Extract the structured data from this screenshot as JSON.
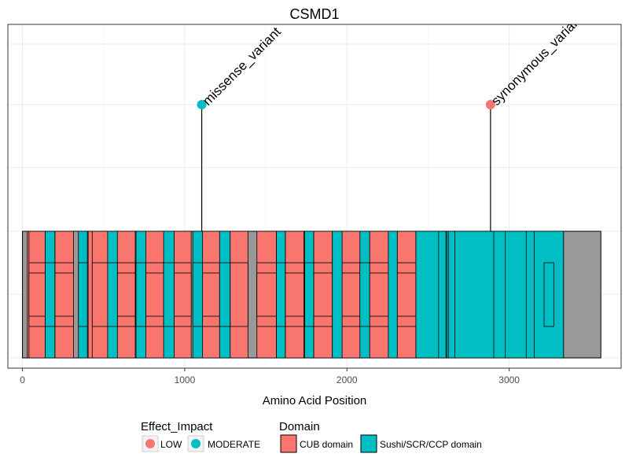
{
  "chart_data": {
    "type": "lollipop",
    "title": "CSMD1",
    "xlabel": "Amino Acid Position",
    "ylabel": "",
    "xlim": [
      -90,
      3690
    ],
    "x_ticks": [
      0,
      1000,
      2000,
      3000
    ],
    "x_tick_labels": [
      "0",
      "1000",
      "2000",
      "3000"
    ],
    "grid": true,
    "legend_position": "bottom",
    "protein": {
      "start": 0,
      "end": 3565,
      "color": "#999999"
    },
    "variants": [
      {
        "label": "missense_variant",
        "position": 1105,
        "effect_impact": "MODERATE"
      },
      {
        "label": "synonymous_variant",
        "position": 2885,
        "effect_impact": "LOW"
      }
    ],
    "domains": [
      {
        "name": "CUB domain",
        "color": "#F8766D",
        "regions": [
          [
            30,
            140
          ],
          [
            40,
            140
          ],
          [
            40,
            140
          ],
          [
            40,
            140
          ],
          [
            200,
            315
          ],
          [
            200,
            315
          ],
          [
            200,
            315
          ],
          [
            405,
            530
          ],
          [
            430,
            530
          ],
          [
            430,
            530
          ],
          [
            580,
            695
          ],
          [
            580,
            695
          ],
          [
            580,
            695
          ],
          [
            755,
            875
          ],
          [
            755,
            875
          ],
          [
            755,
            875
          ],
          [
            930,
            1040
          ],
          [
            930,
            1040
          ],
          [
            930,
            1040
          ],
          [
            1105,
            1225
          ],
          [
            1105,
            1225
          ],
          [
            1105,
            1225
          ],
          [
            1280,
            1390
          ],
          [
            1280,
            1390
          ],
          [
            1445,
            1565
          ],
          [
            1445,
            1565
          ],
          [
            1445,
            1565
          ],
          [
            1620,
            1735
          ],
          [
            1620,
            1735
          ],
          [
            1620,
            1735
          ],
          [
            1795,
            1910
          ],
          [
            1795,
            1910
          ],
          [
            1795,
            1910
          ],
          [
            1970,
            2085
          ],
          [
            1970,
            2085
          ],
          [
            1970,
            2085
          ],
          [
            2140,
            2255
          ],
          [
            2140,
            2255
          ],
          [
            2140,
            2255
          ],
          [
            2310,
            2425
          ],
          [
            2310,
            2425
          ],
          [
            2310,
            2425
          ]
        ]
      },
      {
        "name": "Sushi/SCR/CCP domain",
        "color": "#00BFC4",
        "regions": [
          [
            140,
            200
          ],
          [
            140,
            200
          ],
          [
            345,
            400
          ],
          [
            345,
            400
          ],
          [
            525,
            585
          ],
          [
            525,
            585
          ],
          [
            700,
            760
          ],
          [
            700,
            760
          ],
          [
            870,
            935
          ],
          [
            870,
            935
          ],
          [
            1050,
            1110
          ],
          [
            1050,
            1110
          ],
          [
            1215,
            1280
          ],
          [
            1215,
            1280
          ],
          [
            1565,
            1620
          ],
          [
            1565,
            1620
          ],
          [
            1740,
            1795
          ],
          [
            1740,
            1795
          ],
          [
            1910,
            1970
          ],
          [
            2080,
            2140
          ],
          [
            2080,
            2140
          ],
          [
            2255,
            2310
          ],
          [
            2425,
            2490
          ],
          [
            2490,
            2555
          ],
          [
            2555,
            2615
          ],
          [
            2615,
            2675
          ],
          [
            2675,
            2735
          ],
          [
            2735,
            2795
          ],
          [
            2795,
            2855
          ],
          [
            2855,
            2915
          ],
          [
            2915,
            2975
          ],
          [
            2975,
            3035
          ],
          [
            3035,
            3095
          ],
          [
            3095,
            3155
          ],
          [
            3155,
            3215
          ],
          [
            3215,
            3275
          ],
          [
            3275,
            3335
          ],
          [
            2425,
            3335
          ],
          [
            2565,
            2610
          ],
          [
            2615,
            2665
          ],
          [
            2625,
            2665
          ],
          [
            2905,
            2975
          ],
          [
            3105,
            3155
          ],
          [
            3215,
            3275
          ]
        ]
      }
    ],
    "legends": [
      {
        "title": "Effect_Impact",
        "items": [
          {
            "label": "LOW",
            "color": "#F8766D",
            "shape": "circle"
          },
          {
            "label": "MODERATE",
            "color": "#00BFC4",
            "shape": "circle"
          }
        ]
      },
      {
        "title": "Domain",
        "items": [
          {
            "label": "CUB domain",
            "color": "#F8766D",
            "shape": "square"
          },
          {
            "label": "Sushi/SCR/CCP domain",
            "color": "#00BFC4",
            "shape": "square"
          }
        ]
      }
    ]
  }
}
